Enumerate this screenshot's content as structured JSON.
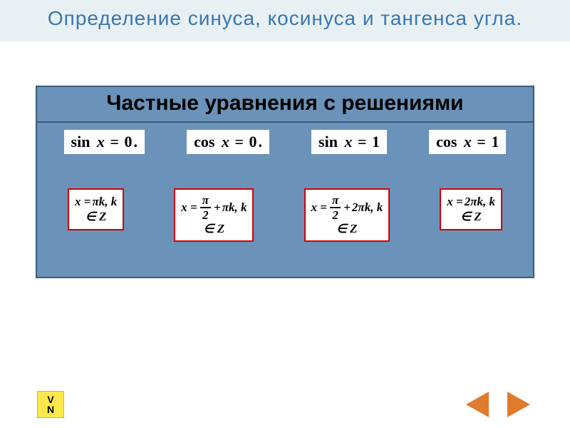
{
  "colors": {
    "title_bg": "#e9f0f4",
    "title_text": "#3777b0",
    "panel_bg": "#6b92b8",
    "panel_border": "#3a5a7a",
    "solution_border": "#d40000",
    "nav_arrow": "#e07b2e",
    "vn_bg": "#ffe84a"
  },
  "title": {
    "text": "Определение синуса, косинуса и тангенса угла.",
    "fontsize": 28
  },
  "panel": {
    "heading": "Частные уравнения с решениями",
    "heading_fontsize": 30,
    "equations": [
      {
        "func": "sin",
        "var": "x",
        "rhs": "0",
        "trail": "."
      },
      {
        "func": "cos",
        "var": "x",
        "rhs": "0",
        "trail": "."
      },
      {
        "func": "sin",
        "var": "x",
        "rhs": "1",
        "trail": ""
      },
      {
        "func": "cos",
        "var": "x",
        "rhs": "1",
        "trail": ""
      }
    ],
    "eq_fontsize": 22,
    "solutions": [
      {
        "prefix": "x = ",
        "has_frac": false,
        "frac_num": "",
        "frac_den": "",
        "mid": "",
        "tail": "πk, k",
        "line2": "∈ Z"
      },
      {
        "prefix": "x = ",
        "has_frac": true,
        "frac_num": "π",
        "frac_den": "2",
        "mid": " + ",
        "tail": "πk, k",
        "line2": "∈ Z"
      },
      {
        "prefix": "x = ",
        "has_frac": true,
        "frac_num": "π",
        "frac_den": "2",
        "mid": " + ",
        "tail": "2πk, k",
        "line2": "∈ Z"
      },
      {
        "prefix": "x = ",
        "has_frac": false,
        "frac_num": "",
        "frac_den": "",
        "mid": "",
        "tail": "2πk, k",
        "line2": "∈ Z"
      }
    ],
    "sol_fontsize": 17
  },
  "vn": {
    "line1": "V",
    "line2": "N"
  }
}
